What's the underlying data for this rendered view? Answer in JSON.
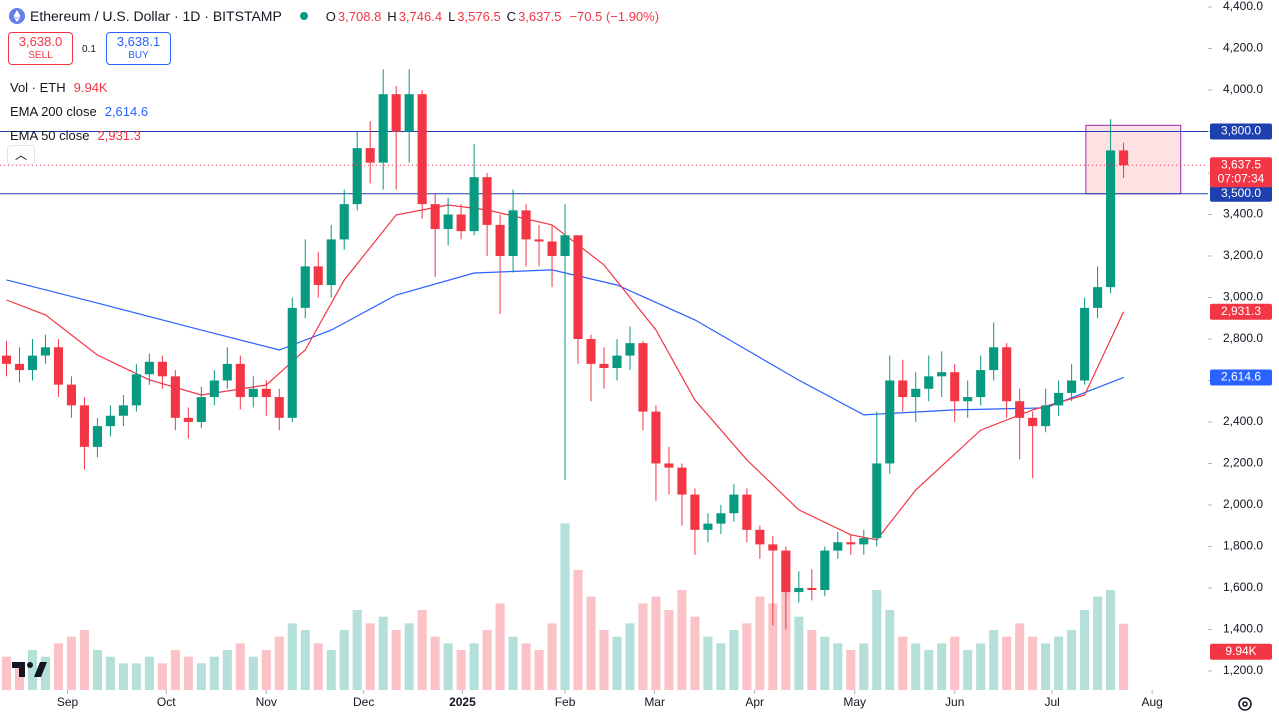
{
  "header": {
    "title": "Ethereum / U.S. Dollar · 1D · BITSTAMP",
    "ohlc": [
      {
        "key": "O",
        "value": "3,708.8"
      },
      {
        "key": "H",
        "value": "3,746.4"
      },
      {
        "key": "L",
        "value": "3,576.5"
      },
      {
        "key": "C",
        "value": "3,637.5"
      }
    ],
    "change": "−70.5 (−1.90%)",
    "sell": {
      "price": "3,638.0",
      "label": "SELL"
    },
    "spread": "0.1",
    "buy": {
      "price": "3,638.1",
      "label": "BUY"
    },
    "indicators": [
      {
        "name": "Vol · ETH",
        "value": "9.94K",
        "color": "#f23645"
      },
      {
        "name": "EMA 200 close",
        "value": "2,614.6",
        "color": "#2962ff"
      },
      {
        "name": "EMA 50 close",
        "value": "2,931.3",
        "color": "#f23645"
      }
    ]
  },
  "chart_data": {
    "type": "candlestick",
    "up_color": "#089981",
    "down_color": "#f23645",
    "xlim": [
      -0.5,
      92.5
    ],
    "xticks": [
      {
        "value": 4.7,
        "label": "Sep"
      },
      {
        "value": 12.3,
        "label": "Oct"
      },
      {
        "value": 20,
        "label": "Nov"
      },
      {
        "value": 27.5,
        "label": "Dec"
      },
      {
        "value": 35.1,
        "label": "2025"
      },
      {
        "value": 43,
        "label": "Feb"
      },
      {
        "value": 49.9,
        "label": "Mar"
      },
      {
        "value": 57.6,
        "label": "Apr"
      },
      {
        "value": 65.3,
        "label": "May"
      },
      {
        "value": 73,
        "label": "Jun"
      },
      {
        "value": 80.5,
        "label": "Jul"
      },
      {
        "value": 88.2,
        "label": "Aug"
      }
    ],
    "ylim": [
      1108,
      4434
    ],
    "yticks": [
      {
        "value": 1200,
        "label": "1,200.0"
      },
      {
        "value": 1400,
        "label": "1,400.0"
      },
      {
        "value": 1600,
        "label": "1,600.0"
      },
      {
        "value": 1800,
        "label": "1,800.0"
      },
      {
        "value": 2000,
        "label": "2,000.0"
      },
      {
        "value": 2200,
        "label": "2,200.0"
      },
      {
        "value": 2400,
        "label": "2,400.0"
      },
      {
        "value": 2600,
        "label": "2,600.0"
      },
      {
        "value": 2800,
        "label": "2,800.0"
      },
      {
        "value": 3000,
        "label": "3,000.0"
      },
      {
        "value": 3200,
        "label": "3,200.0"
      },
      {
        "value": 3400,
        "label": "3,400.0"
      },
      {
        "value": 3600,
        "label": "3,600.0"
      },
      {
        "value": 3800,
        "label": "3,800.0"
      },
      {
        "value": 4000,
        "label": "4,000.0"
      },
      {
        "value": 4200,
        "label": "4,200.0"
      },
      {
        "value": 4400,
        "label": "4,400.0"
      }
    ],
    "grid": false,
    "open": [
      2720,
      2680,
      2650,
      2720,
      2760,
      2580,
      2480,
      2280,
      2380,
      2430,
      2480,
      2630,
      2690,
      2620,
      2420,
      2400,
      2520,
      2600,
      2680,
      2520,
      2560,
      2520,
      2420,
      2950,
      3150,
      3060,
      3280,
      3450,
      3720,
      3650,
      3980,
      3800,
      3980,
      3450,
      3330,
      3400,
      3320,
      3580,
      3350,
      3200,
      3420,
      3280,
      3270,
      3200,
      3300,
      2800,
      2680,
      2660,
      2720,
      2780,
      2450,
      2200,
      2180,
      2050,
      1880,
      1910,
      1960,
      2050,
      1880,
      1810,
      1780,
      1580,
      1600,
      1590,
      1780,
      1820,
      1810,
      1840,
      2200,
      2600,
      2520,
      2560,
      2620,
      2640,
      2500,
      2520,
      2650,
      2760,
      2500,
      2420,
      2380,
      2480,
      2540,
      2600,
      2950,
      3050,
      3708.8
    ],
    "high": [
      2790,
      2760,
      2800,
      2820,
      2800,
      2620,
      2520,
      2420,
      2480,
      2530,
      2680,
      2730,
      2720,
      2650,
      2470,
      2570,
      2650,
      2760,
      2720,
      2620,
      2600,
      2560,
      3000,
      3280,
      3220,
      3350,
      3520,
      3800,
      3850,
      4100,
      4020,
      4100,
      4000,
      3500,
      3480,
      3450,
      3740,
      3600,
      3400,
      3520,
      3450,
      3350,
      3350,
      3450,
      3300,
      2820,
      2760,
      2800,
      2860,
      2790,
      2480,
      2280,
      2200,
      2080,
      1960,
      2000,
      2100,
      2080,
      1900,
      1850,
      1800,
      1680,
      1690,
      1800,
      1870,
      1860,
      1880,
      2450,
      2720,
      2700,
      2640,
      2720,
      2740,
      2680,
      2600,
      2720,
      2880,
      2780,
      2560,
      2450,
      2560,
      2600,
      2680,
      3000,
      3150,
      3860,
      3746.4
    ],
    "low": [
      2620,
      2590,
      2600,
      2680,
      2520,
      2420,
      2170,
      2230,
      2330,
      2380,
      2450,
      2580,
      2560,
      2360,
      2320,
      2370,
      2480,
      2560,
      2460,
      2470,
      2430,
      2360,
      2400,
      2900,
      3000,
      3000,
      3230,
      3420,
      3550,
      3520,
      3520,
      3650,
      3380,
      3100,
      3250,
      3280,
      3300,
      3200,
      2920,
      3120,
      3150,
      3150,
      3050,
      2120,
      2680,
      2500,
      2560,
      2600,
      2650,
      2360,
      2020,
      2050,
      1900,
      1760,
      1820,
      1860,
      1920,
      1820,
      1740,
      1420,
      1400,
      1530,
      1540,
      1560,
      1740,
      1760,
      1760,
      1800,
      2150,
      2450,
      2400,
      2500,
      2520,
      2400,
      2420,
      2480,
      2600,
      2420,
      2220,
      2130,
      2350,
      2430,
      2500,
      2580,
      2900,
      3020,
      3576.5
    ],
    "close": [
      2680,
      2650,
      2720,
      2760,
      2580,
      2480,
      2280,
      2380,
      2430,
      2480,
      2630,
      2690,
      2620,
      2420,
      2400,
      2520,
      2600,
      2680,
      2520,
      2560,
      2520,
      2420,
      2950,
      3150,
      3060,
      3280,
      3450,
      3720,
      3650,
      3980,
      3800,
      3980,
      3450,
      3330,
      3400,
      3320,
      3580,
      3350,
      3200,
      3420,
      3280,
      3270,
      3200,
      3300,
      2800,
      2680,
      2660,
      2720,
      2780,
      2450,
      2200,
      2180,
      2050,
      1880,
      1910,
      1960,
      2050,
      1880,
      1810,
      1780,
      1580,
      1600,
      1590,
      1780,
      1820,
      1810,
      1840,
      2200,
      2600,
      2520,
      2560,
      2620,
      2640,
      2500,
      2520,
      2650,
      2760,
      2500,
      2420,
      2380,
      2480,
      2540,
      2600,
      2950,
      3050,
      3708.8,
      3637.5
    ],
    "volume": [
      5,
      4,
      6,
      5,
      7,
      8,
      9,
      6,
      5,
      4,
      4,
      5,
      4,
      6,
      5,
      4,
      5,
      6,
      7,
      5,
      6,
      8,
      10,
      9,
      7,
      6,
      9,
      12,
      10,
      11,
      9,
      10,
      12,
      8,
      7,
      6,
      7,
      9,
      13,
      8,
      7,
      6,
      10,
      25,
      18,
      14,
      9,
      8,
      10,
      13,
      14,
      12,
      15,
      11,
      8,
      7,
      9,
      10,
      14,
      13,
      20,
      11,
      9,
      8,
      7,
      6,
      7,
      15,
      12,
      8,
      7,
      6,
      7,
      8,
      6,
      7,
      9,
      8,
      10,
      8,
      7,
      8,
      9,
      12,
      14,
      15,
      9.94
    ],
    "vlim": [
      0,
      30
    ],
    "volume_label": "9.94K",
    "series": [
      {
        "name": "EMA 200 close",
        "color": "#2962ff",
        "axis_label": "2,614.6",
        "x": [
          0,
          7,
          15,
          21,
          25,
          30,
          36,
          42,
          47,
          53,
          61,
          66,
          73,
          80,
          86
        ],
        "values": [
          3085,
          2973,
          2843,
          2747,
          2843,
          3012,
          3118,
          3133,
          3060,
          2892,
          2602,
          2434,
          2458,
          2468,
          2614.6
        ]
      },
      {
        "name": "EMA 50 close",
        "color": "#f23645",
        "axis_label": "2,931.3",
        "x": [
          0,
          3,
          7,
          11,
          15,
          20,
          23,
          26,
          30,
          34,
          37,
          42,
          46,
          50,
          53,
          57,
          61,
          65,
          67,
          70,
          75,
          79,
          83,
          86
        ],
        "values": [
          2988,
          2916,
          2723,
          2603,
          2530,
          2578,
          2747,
          3084,
          3398,
          3446,
          3422,
          3350,
          3157,
          2843,
          2506,
          2217,
          1976,
          1856,
          1832,
          2072,
          2361,
          2458,
          2530,
          2931.3
        ]
      }
    ],
    "levels": [
      {
        "value": 3800,
        "label": "3,800.0",
        "color": "#1e40af"
      },
      {
        "value": 3500,
        "label": "3,500.0",
        "color": "#1e40af"
      }
    ],
    "last": {
      "value": 3637.5,
      "label": "3,637.5",
      "countdown": "07:07:34",
      "color": "#f23645"
    },
    "box": {
      "x": [
        83.1,
        90.4
      ],
      "y": [
        3500,
        3830
      ],
      "color": "#9c27b0"
    }
  }
}
